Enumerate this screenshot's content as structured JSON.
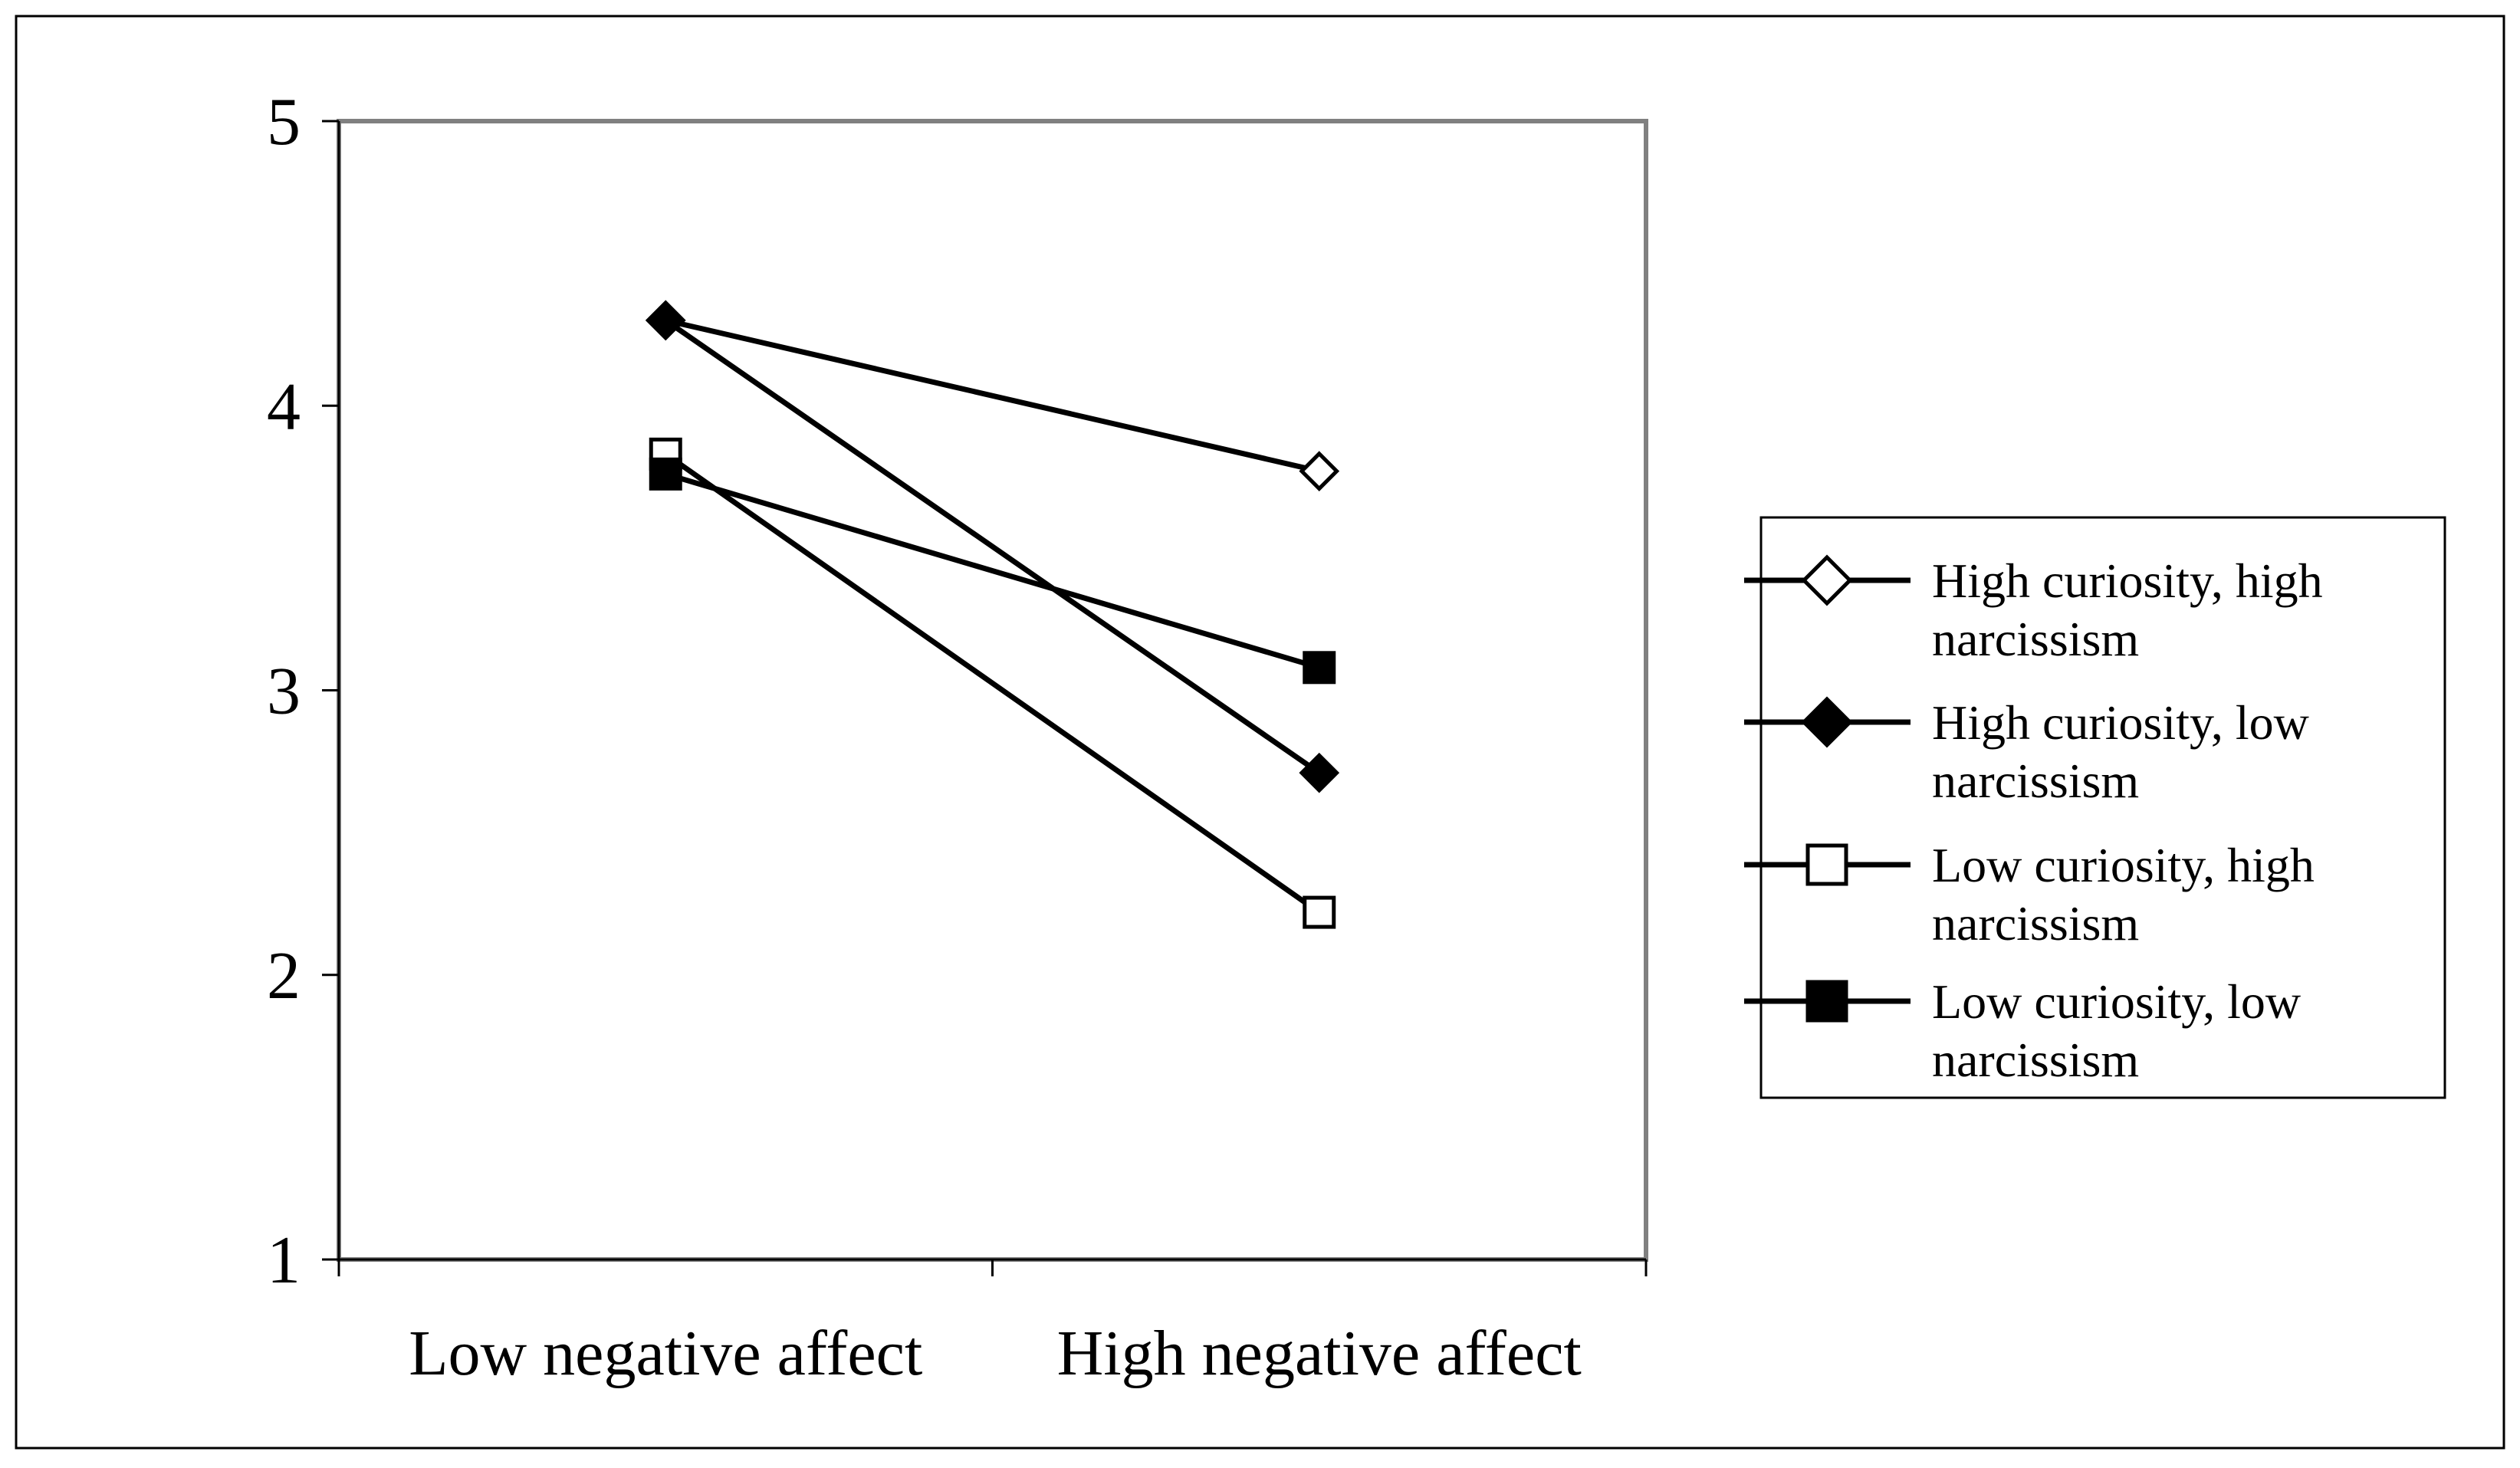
{
  "chart_data": {
    "type": "line",
    "title": "",
    "xlabel": "",
    "ylabel": "",
    "categories": [
      "Low negative affect",
      "High negative affect"
    ],
    "ylim": [
      1,
      5
    ],
    "yticks": [
      "1",
      "2",
      "3",
      "4",
      "5"
    ],
    "grid": false,
    "legend_position": "right",
    "series": [
      {
        "name": "High curiosity, high narcissism",
        "name_lines": [
          "High curiosity, high",
          "narcissism"
        ],
        "values": [
          4.3,
          3.77
        ],
        "marker": "diamond-open",
        "line_color": "#000000"
      },
      {
        "name": "High curiosity, low narcissism",
        "name_lines": [
          "High curiosity, low",
          "narcissism"
        ],
        "values": [
          4.3,
          2.71
        ],
        "marker": "diamond-filled",
        "line_color": "#000000"
      },
      {
        "name": "Low curiosity, high narcissism",
        "name_lines": [
          "Low curiosity, high",
          "narcissism"
        ],
        "values": [
          3.83,
          2.22
        ],
        "marker": "square-open",
        "line_color": "#000000"
      },
      {
        "name": "Low curiosity, low narcissism",
        "name_lines": [
          "Low curiosity, low",
          "narcissism"
        ],
        "values": [
          3.76,
          3.08
        ],
        "marker": "square-filled",
        "line_color": "#000000"
      }
    ]
  },
  "colors": {
    "plot_border": "#808080",
    "axis": "#000000",
    "marker_open_fill": "#ffffff",
    "marker_filled": "#000000"
  }
}
